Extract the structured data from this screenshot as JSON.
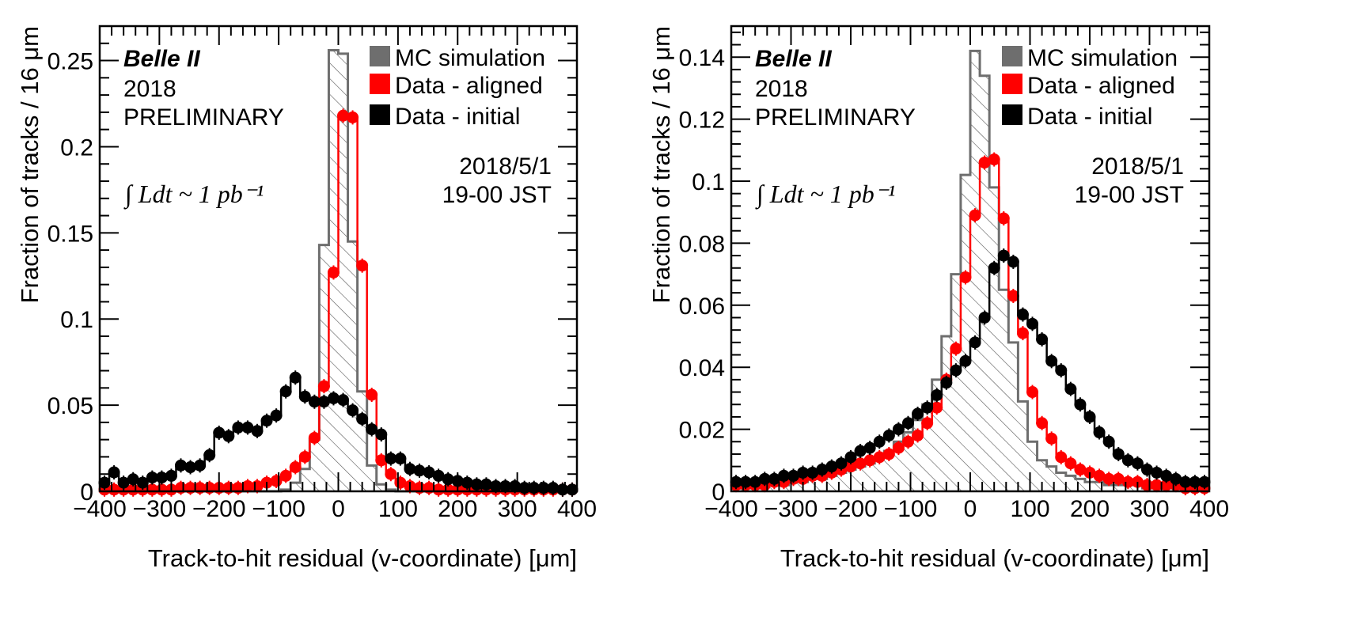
{
  "chart_data": [
    {
      "type": "bar",
      "panel": "left",
      "title": "",
      "xlabel": "Track-to-hit residual (v-coordinate) [μm]",
      "ylabel": "Fraction of tracks / 16 μm",
      "xlim": [
        -400,
        400
      ],
      "ylim": [
        0,
        0.27
      ],
      "yticks": [
        0,
        0.05,
        0.1,
        0.15,
        0.2,
        0.25
      ],
      "ytick_labels": [
        "0",
        "0.05",
        "0.1",
        "0.15",
        "0.2",
        "0.25"
      ],
      "xticks": [
        -400,
        -300,
        -200,
        -100,
        0,
        100,
        200,
        300,
        400
      ],
      "xtick_labels": [
        "−400",
        "−300",
        "−200",
        "−100",
        "0",
        "100",
        "200",
        "300",
        "400"
      ],
      "bin_width": 16,
      "bin_centers": [
        -392,
        -376,
        -360,
        -344,
        -328,
        -312,
        -296,
        -280,
        -264,
        -248,
        -232,
        -216,
        -200,
        -184,
        -168,
        -152,
        -136,
        -120,
        -104,
        -88,
        -72,
        -56,
        -40,
        -24,
        -8,
        8,
        24,
        40,
        56,
        72,
        88,
        104,
        120,
        136,
        152,
        168,
        184,
        200,
        216,
        232,
        248,
        264,
        280,
        296,
        312,
        328,
        344,
        360,
        376,
        392
      ],
      "series": [
        {
          "name": "MC simulation",
          "style": "hatched-step",
          "color": "#6e6e6e",
          "values": [
            0,
            0,
            0,
            0,
            0,
            0,
            0,
            0,
            0,
            0,
            0,
            0,
            0,
            0,
            0,
            0,
            0,
            0,
            0,
            0.001,
            0.005,
            0.013,
            0.03,
            0.143,
            0.256,
            0.254,
            0.145,
            0.058,
            0.015,
            0.004,
            0.001,
            0,
            0,
            0,
            0,
            0,
            0,
            0,
            0,
            0,
            0,
            0,
            0,
            0,
            0,
            0,
            0,
            0,
            0,
            0
          ]
        },
        {
          "name": "Data - aligned",
          "style": "step-markers",
          "color": "#ff0000",
          "values": [
            0.001,
            0.001,
            0.001,
            0.001,
            0.001,
            0.001,
            0.001,
            0.001,
            0.002,
            0.002,
            0.002,
            0.002,
            0.002,
            0.002,
            0.002,
            0.003,
            0.003,
            0.005,
            0.006,
            0.009,
            0.014,
            0.02,
            0.031,
            0.061,
            0.127,
            0.218,
            0.217,
            0.131,
            0.056,
            0.018,
            0.01,
            0.005,
            0.003,
            0.002,
            0.002,
            0.001,
            0.001,
            0.001,
            0.001,
            0.001,
            0.001,
            0.001,
            0.001,
            0.001,
            0.001,
            0.001,
            0.001,
            0.001,
            0.001,
            0.001
          ]
        },
        {
          "name": "Data - initial",
          "style": "step-markers",
          "color": "#000000",
          "values": [
            0.005,
            0.011,
            0.005,
            0.007,
            0.005,
            0.008,
            0.008,
            0.009,
            0.015,
            0.014,
            0.015,
            0.021,
            0.034,
            0.032,
            0.037,
            0.037,
            0.035,
            0.041,
            0.044,
            0.058,
            0.066,
            0.055,
            0.052,
            0.052,
            0.054,
            0.053,
            0.047,
            0.042,
            0.036,
            0.033,
            0.019,
            0.019,
            0.013,
            0.012,
            0.011,
            0.009,
            0.007,
            0.006,
            0.005,
            0.004,
            0.004,
            0.003,
            0.003,
            0.003,
            0.002,
            0.002,
            0.002,
            0.002,
            0.001,
            0.001
          ]
        }
      ],
      "annotations": {
        "experiment": "Belle II",
        "year": "2018",
        "status": "PRELIMINARY",
        "date": "2018/5/1",
        "time": "19-00 JST",
        "luminosity": "∫ Ldt ~ 1 pb⁻¹"
      },
      "legend_position": "top-right"
    },
    {
      "type": "bar",
      "panel": "right",
      "title": "",
      "xlabel": "Track-to-hit residual (v-coordinate) [μm]",
      "ylabel": "Fraction of tracks / 16 μm",
      "xlim": [
        -400,
        400
      ],
      "ylim": [
        0,
        0.15
      ],
      "yticks": [
        0,
        0.02,
        0.04,
        0.06,
        0.08,
        0.1,
        0.12,
        0.14
      ],
      "ytick_labels": [
        "0",
        "0.02",
        "0.04",
        "0.06",
        "0.08",
        "0.1",
        "0.12",
        "0.14"
      ],
      "xticks": [
        -400,
        -300,
        -200,
        -100,
        0,
        100,
        200,
        300,
        400
      ],
      "xtick_labels": [
        "−400",
        "−300",
        "−200",
        "−100",
        "0",
        "100",
        "200",
        "300",
        "400"
      ],
      "bin_width": 16,
      "bin_centers": [
        -392,
        -376,
        -360,
        -344,
        -328,
        -312,
        -296,
        -280,
        -264,
        -248,
        -232,
        -216,
        -200,
        -184,
        -168,
        -152,
        -136,
        -120,
        -104,
        -88,
        -72,
        -56,
        -40,
        -24,
        -8,
        8,
        24,
        40,
        56,
        72,
        88,
        104,
        120,
        136,
        152,
        168,
        184,
        200,
        216,
        232,
        248,
        264,
        280,
        296,
        312,
        328,
        344,
        360,
        376,
        392
      ],
      "series": [
        {
          "name": "MC simulation",
          "style": "hatched-step",
          "color": "#6e6e6e",
          "values": [
            0.001,
            0.001,
            0.001,
            0.002,
            0.002,
            0.002,
            0.003,
            0.003,
            0.004,
            0.004,
            0.005,
            0.006,
            0.007,
            0.008,
            0.009,
            0.011,
            0.013,
            0.016,
            0.019,
            0.023,
            0.028,
            0.036,
            0.05,
            0.07,
            0.102,
            0.142,
            0.134,
            0.098,
            0.065,
            0.048,
            0.029,
            0.016,
            0.01,
            0.008,
            0.006,
            0.005,
            0.004,
            0.003,
            0.003,
            0.002,
            0.002,
            0.002,
            0.002,
            0.001,
            0.001,
            0.001,
            0.001,
            0.001,
            0.001,
            0.001
          ]
        },
        {
          "name": "Data - aligned",
          "style": "step-markers",
          "color": "#ff0000",
          "values": [
            0.002,
            0.002,
            0.002,
            0.002,
            0.003,
            0.003,
            0.004,
            0.004,
            0.005,
            0.005,
            0.006,
            0.007,
            0.008,
            0.009,
            0.01,
            0.011,
            0.012,
            0.014,
            0.016,
            0.018,
            0.022,
            0.027,
            0.036,
            0.046,
            0.069,
            0.089,
            0.106,
            0.107,
            0.088,
            0.063,
            0.051,
            0.032,
            0.022,
            0.017,
            0.011,
            0.009,
            0.007,
            0.006,
            0.005,
            0.004,
            0.004,
            0.003,
            0.003,
            0.002,
            0.002,
            0.002,
            0.002,
            0.001,
            0.001,
            0.001
          ]
        },
        {
          "name": "Data - initial",
          "style": "step-markers",
          "color": "#000000",
          "values": [
            0.003,
            0.003,
            0.003,
            0.004,
            0.004,
            0.005,
            0.005,
            0.006,
            0.006,
            0.007,
            0.008,
            0.009,
            0.011,
            0.013,
            0.014,
            0.016,
            0.018,
            0.02,
            0.022,
            0.025,
            0.027,
            0.031,
            0.035,
            0.039,
            0.042,
            0.048,
            0.056,
            0.072,
            0.076,
            0.074,
            0.057,
            0.054,
            0.049,
            0.042,
            0.039,
            0.033,
            0.028,
            0.024,
            0.019,
            0.016,
            0.012,
            0.01,
            0.009,
            0.007,
            0.006,
            0.005,
            0.004,
            0.003,
            0.003,
            0.003
          ]
        }
      ],
      "annotations": {
        "experiment": "Belle II",
        "year": "2018",
        "status": "PRELIMINARY",
        "date": "2018/5/1",
        "time": "19-00 JST",
        "luminosity": "∫ Ldt ~ 1 pb⁻¹"
      },
      "legend_position": "top-right"
    }
  ],
  "colors": {
    "mc": "#6e6e6e",
    "aligned": "#ff0000",
    "initial": "#000000",
    "hatch": "#555555",
    "frame": "#000000"
  }
}
